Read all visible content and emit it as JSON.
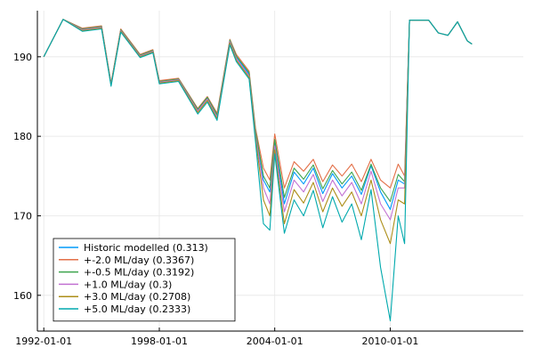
{
  "chart_data": {
    "type": "line",
    "title": "",
    "xlabel": "",
    "ylabel": "",
    "grid": true,
    "legend_position": "bottom-left",
    "xlim": [
      "1991-09-01",
      "2016-12-01"
    ],
    "ylim": [
      155.5,
      195.8
    ],
    "x_ticks": [
      "1992-01-01",
      "1998-01-01",
      "2004-01-01",
      "2010-01-01"
    ],
    "y_ticks": [
      160,
      170,
      180,
      190
    ],
    "x": [
      "1992-01-01",
      "1993-01-01",
      "1994-01-01",
      "1995-01-01",
      "1995-07-01",
      "1996-01-01",
      "1997-01-01",
      "1997-09-01",
      "1998-01-01",
      "1999-01-01",
      "2000-01-01",
      "2000-07-01",
      "2001-01-01",
      "2001-09-01",
      "2002-01-01",
      "2002-09-01",
      "2003-01-01",
      "2003-06-01",
      "2003-10-01",
      "2004-01-01",
      "2004-07-01",
      "2005-01-01",
      "2005-07-01",
      "2006-01-01",
      "2006-07-01",
      "2007-01-01",
      "2007-07-01",
      "2008-01-01",
      "2008-07-01",
      "2009-01-01",
      "2009-07-01",
      "2010-01-01",
      "2010-06-01",
      "2010-10-01",
      "2011-01-01",
      "2012-01-01",
      "2012-07-01",
      "2013-01-01",
      "2013-07-01",
      "2014-01-01",
      "2014-04-01"
    ],
    "series": [
      {
        "name": "Historic modelled (0.313)",
        "color": "#009AFA",
        "values": [
          190.0,
          194.7,
          193.5,
          193.8,
          186.6,
          193.4,
          190.2,
          190.8,
          186.9,
          187.2,
          183.3,
          184.8,
          182.6,
          192.0,
          190.0,
          187.8,
          180.5,
          174.5,
          173.0,
          179.2,
          171.5,
          175.5,
          174.0,
          176.0,
          172.8,
          175.3,
          173.5,
          175.0,
          172.7,
          176.3,
          173.0,
          170.8,
          174.5,
          174.0,
          194.6,
          194.6,
          193.0,
          192.7,
          194.4,
          192.0,
          191.6
        ]
      },
      {
        "name": "+-2.0 ML/day (0.3367)",
        "color": "#E36F47",
        "values": [
          190.0,
          194.7,
          193.6,
          193.9,
          186.7,
          193.5,
          190.3,
          190.9,
          187.0,
          187.3,
          183.5,
          185.0,
          182.9,
          192.2,
          190.3,
          188.2,
          181.0,
          176.0,
          174.5,
          180.3,
          173.5,
          176.8,
          175.6,
          177.1,
          174.3,
          176.4,
          175.0,
          176.5,
          174.3,
          177.1,
          174.5,
          173.5,
          176.5,
          175.0,
          194.6,
          194.6,
          193.0,
          192.7,
          194.4,
          192.0,
          191.6
        ]
      },
      {
        "name": "+-0.5 ML/day (0.3192)",
        "color": "#3EA44E",
        "values": [
          190.0,
          194.7,
          193.5,
          193.8,
          186.6,
          193.4,
          190.2,
          190.8,
          186.9,
          187.2,
          183.4,
          184.9,
          182.7,
          192.1,
          190.1,
          188.0,
          180.7,
          175.0,
          173.5,
          179.6,
          172.3,
          176.0,
          174.6,
          176.4,
          173.4,
          175.7,
          174.0,
          175.5,
          173.2,
          176.5,
          173.5,
          171.8,
          175.2,
          174.3,
          194.6,
          194.6,
          193.0,
          192.7,
          194.4,
          192.0,
          191.6
        ]
      },
      {
        "name": "+1.0 ML/day (0.3)",
        "color": "#C271D2",
        "values": [
          190.0,
          194.7,
          193.4,
          193.7,
          186.5,
          193.3,
          190.1,
          190.7,
          186.8,
          187.1,
          183.2,
          184.7,
          182.4,
          191.9,
          189.8,
          187.6,
          180.2,
          173.5,
          171.5,
          178.8,
          170.5,
          174.5,
          173.0,
          175.2,
          171.8,
          174.5,
          172.5,
          174.2,
          171.5,
          175.6,
          171.5,
          169.5,
          173.5,
          173.5,
          194.6,
          194.6,
          193.0,
          192.7,
          194.4,
          192.0,
          191.6
        ]
      },
      {
        "name": "+3.0 ML/day (0.2708)",
        "color": "#AC8E18",
        "values": [
          190.0,
          194.7,
          193.3,
          193.6,
          186.4,
          193.2,
          190.0,
          190.6,
          186.7,
          187.0,
          183.0,
          184.5,
          182.2,
          191.7,
          189.6,
          187.4,
          179.8,
          172.0,
          170.0,
          178.3,
          169.0,
          173.3,
          171.6,
          174.2,
          170.5,
          173.5,
          171.2,
          173.0,
          170.0,
          174.5,
          169.5,
          166.5,
          172.0,
          171.5,
          194.6,
          194.6,
          193.0,
          192.7,
          194.4,
          192.0,
          191.6
        ]
      },
      {
        "name": "+5.0 ML/day (0.2333)",
        "color": "#00A9AD",
        "values": [
          190.0,
          194.7,
          193.2,
          193.5,
          186.3,
          193.1,
          189.9,
          190.5,
          186.6,
          186.9,
          182.8,
          184.3,
          182.0,
          191.5,
          189.4,
          187.2,
          179.3,
          169.0,
          168.2,
          177.8,
          167.8,
          172.0,
          170.0,
          173.2,
          168.5,
          172.4,
          169.2,
          171.5,
          167.0,
          173.3,
          163.5,
          156.8,
          170.0,
          166.5,
          194.6,
          194.6,
          193.0,
          192.7,
          194.4,
          192.0,
          191.6
        ]
      }
    ]
  }
}
